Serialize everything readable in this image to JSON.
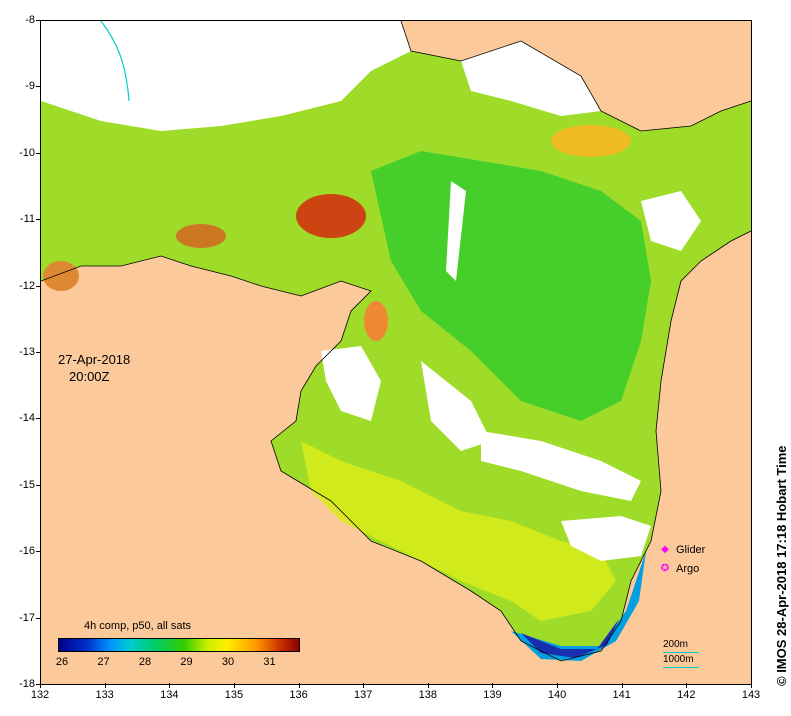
{
  "axes": {
    "x_ticks": [
      "132",
      "133",
      "134",
      "135",
      "136",
      "137",
      "138",
      "139",
      "140",
      "141",
      "142",
      "143"
    ],
    "y_ticks": [
      "-8",
      "-9",
      "-10",
      "-11",
      "-12",
      "-13",
      "-14",
      "-15",
      "-16",
      "-17",
      "-18"
    ]
  },
  "date_label": "27-Apr-2018",
  "time_label": "20:00Z",
  "colorbar": {
    "title": "4h comp, p50, all sats",
    "ticks": [
      "26",
      "27",
      "28",
      "29",
      "30",
      "31"
    ],
    "colors": {
      "min": "#00008b",
      "mid": "#33cc00",
      "max": "#8b0000"
    }
  },
  "legend": {
    "items": [
      {
        "label": "Glider",
        "symbol": "diamond",
        "color": "#ff00ff"
      },
      {
        "label": "Argo",
        "symbol": "circle",
        "color": "#ff00ff"
      }
    ]
  },
  "contour_key": {
    "upper": "200m",
    "lower": "1000m",
    "color": "#00cccc"
  },
  "credit": "© IMOS 28-Apr-2018 17:18 Hobart Time",
  "colors": {
    "land": "#fcc99a",
    "cloud": "#ffffff",
    "sst_warm": "#ccee00",
    "sst_cool": "#33cc00"
  }
}
